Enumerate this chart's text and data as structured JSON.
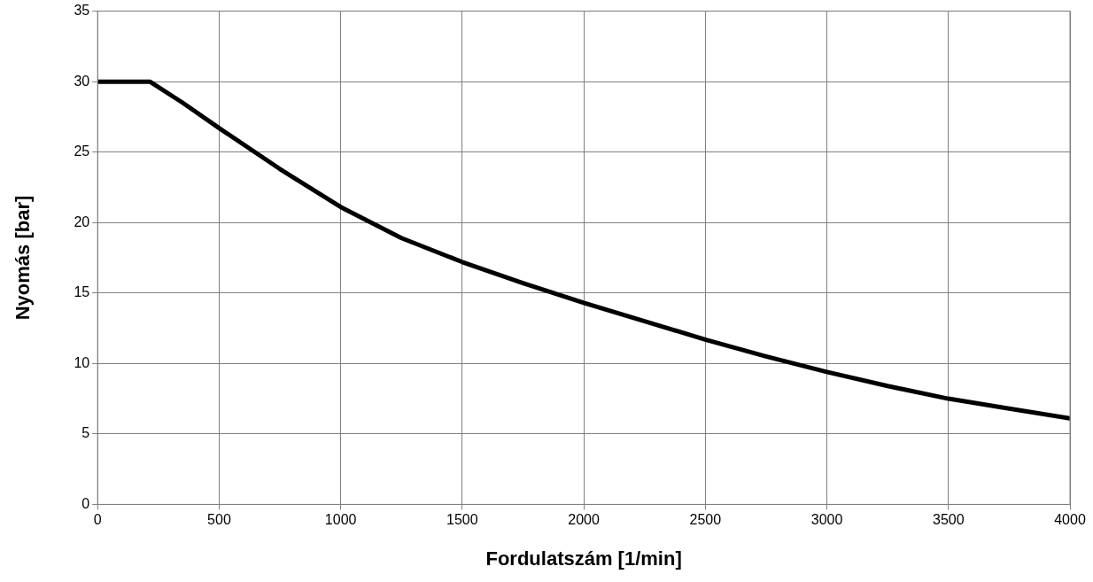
{
  "chart_data": {
    "type": "line",
    "xlabel": "Fordulatszám [1/min]",
    "ylabel": "Nyomás [bar]",
    "x": [
      0,
      215,
      350,
      500,
      750,
      1000,
      1250,
      1500,
      1750,
      2000,
      2250,
      2500,
      2750,
      3000,
      3250,
      3500,
      3750,
      4000
    ],
    "series": [
      {
        "color": "#000000",
        "values": [
          30,
          30,
          28.5,
          26.7,
          23.8,
          21.1,
          18.9,
          17.2,
          15.7,
          14.3,
          13.0,
          11.7,
          10.5,
          9.4,
          8.4,
          7.5,
          6.8,
          6.1
        ]
      }
    ],
    "xlim": [
      0,
      4000
    ],
    "xticks": [
      0,
      500,
      1000,
      1500,
      2000,
      2500,
      3000,
      3500,
      4000
    ],
    "ylim": [
      0,
      35
    ],
    "yticks": [
      0,
      5,
      10,
      15,
      20,
      25,
      30,
      35
    ],
    "grid": true,
    "legend": false,
    "marker": "none",
    "line_style": "solid"
  }
}
